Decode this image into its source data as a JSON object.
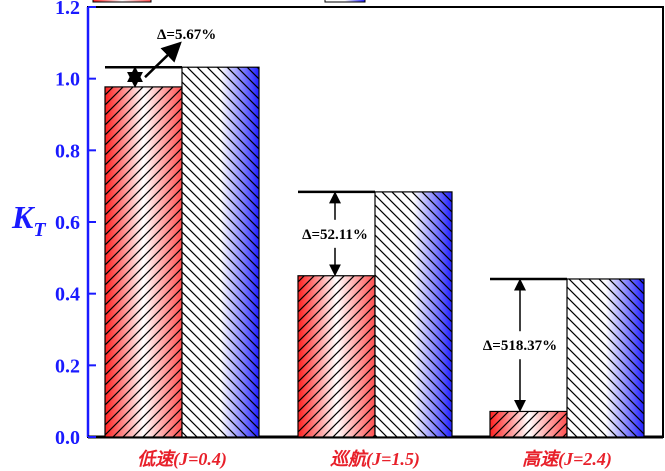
{
  "chart_data": {
    "type": "bar",
    "title": "",
    "xlabel": "",
    "ylabel": "K",
    "ylabel_sub": "T",
    "ylim": [
      0,
      1.2
    ],
    "yticks": [
      "0.0",
      "0.2",
      "0.4",
      "0.6",
      "0.8",
      "1.0",
      "1.2"
    ],
    "categories": [
      "低速(J=0.4)",
      "巡航(J=1.5)",
      "高速(J=2.4)"
    ],
    "series": [
      {
        "name": "red",
        "color": "#ff2020",
        "values": [
          0.977,
          0.45,
          0.0713
        ]
      },
      {
        "name": "blue",
        "color": "#2020ff",
        "values": [
          1.032,
          0.684,
          0.441
        ]
      }
    ],
    "annotations": [
      "Δ=5.67%",
      "Δ=52.11%",
      "Δ=518.37%"
    ],
    "grid": false
  }
}
